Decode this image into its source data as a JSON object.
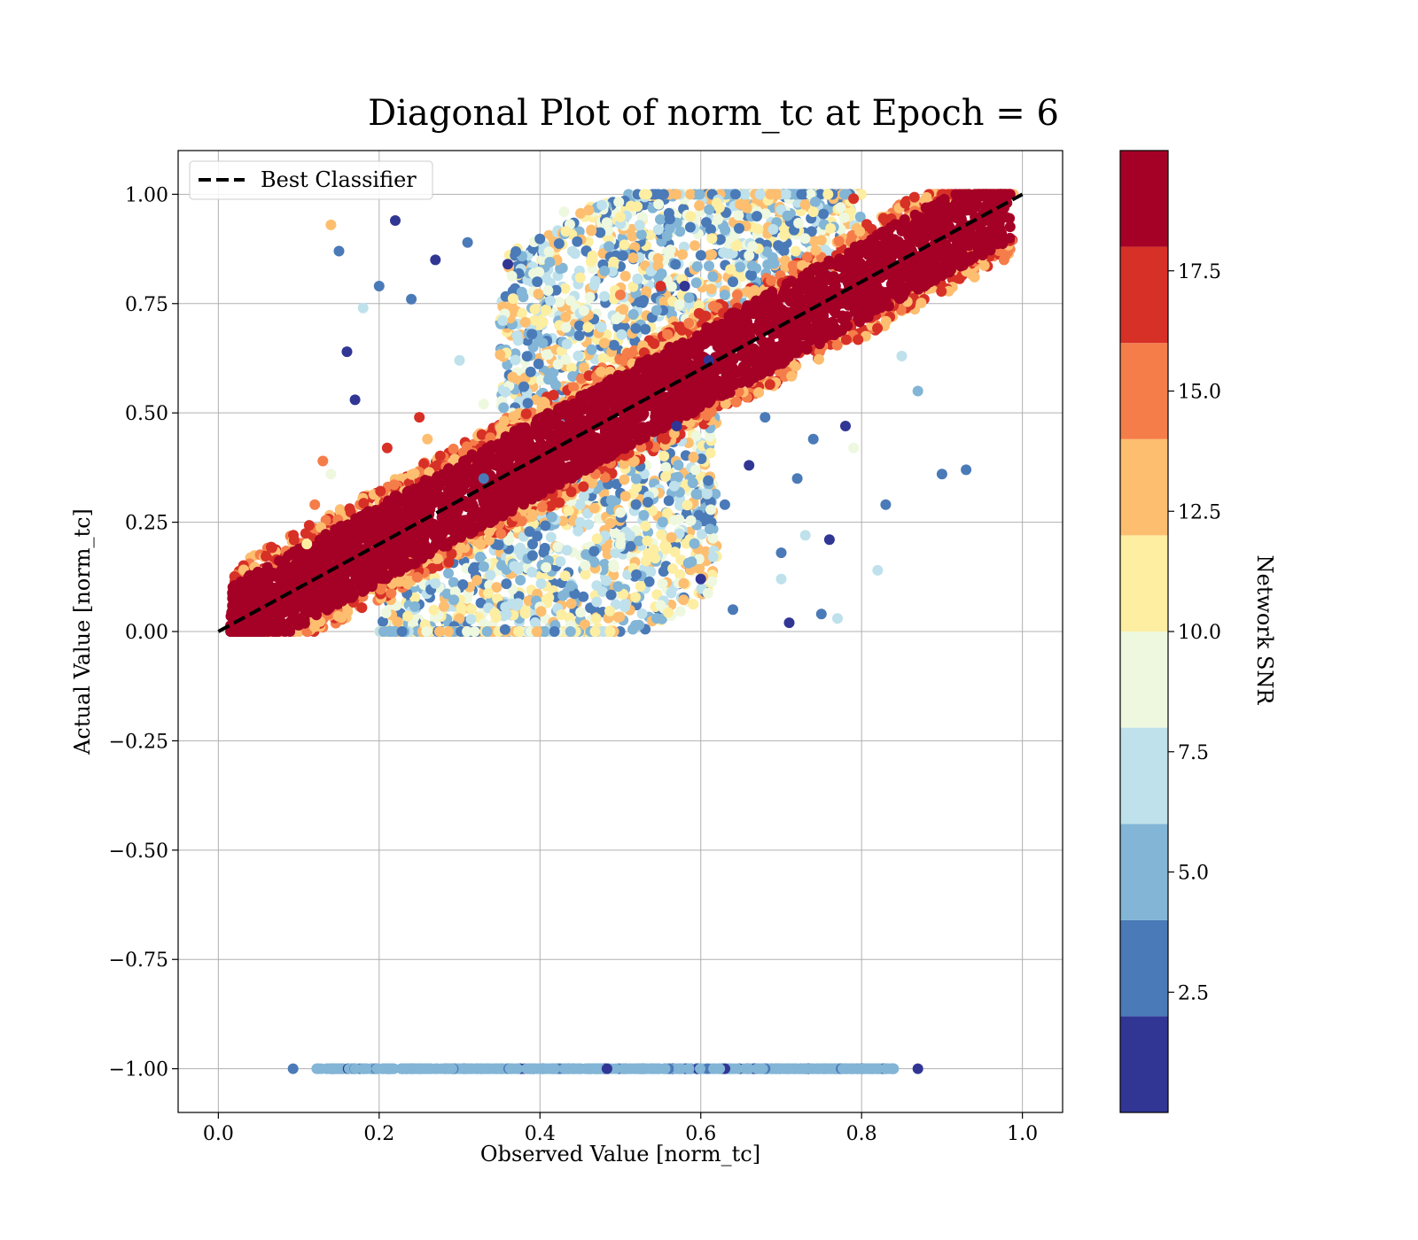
{
  "chart_data": {
    "type": "scatter",
    "title": "Diagonal Plot of norm_tc at Epoch = 6",
    "xlabel": "Observed Value [norm_tc]",
    "ylabel": "Actual Value [norm_tc]",
    "xlim": [
      -0.05,
      1.05
    ],
    "ylim": [
      -1.1,
      1.1
    ],
    "x_ticks": [
      "0.0",
      "0.2",
      "0.4",
      "0.6",
      "0.8",
      "1.0"
    ],
    "x_tick_values": [
      0.0,
      0.2,
      0.4,
      0.6,
      0.8,
      1.0
    ],
    "y_ticks": [
      "1.00",
      "0.75",
      "0.50",
      "0.25",
      "0.00",
      "−0.25",
      "−0.50",
      "−0.75",
      "−1.00"
    ],
    "y_tick_values": [
      1.0,
      0.75,
      0.5,
      0.25,
      0.0,
      -0.25,
      -0.5,
      -0.75,
      -1.0
    ],
    "grid": true,
    "legend": {
      "position": "upper-left",
      "entries": [
        {
          "label": "Best Classifier",
          "style": "dashed",
          "color": "#000000"
        }
      ]
    },
    "reference_line": {
      "name": "Best Classifier",
      "x": [
        0.0,
        1.0
      ],
      "y": [
        0.0,
        1.0
      ]
    },
    "colorbar": {
      "label": "Network SNR",
      "range": [
        0,
        20
      ],
      "ticks": [
        "2.5",
        "5.0",
        "7.5",
        "10.0",
        "12.5",
        "15.0",
        "17.5"
      ],
      "tick_values": [
        2.5,
        5.0,
        7.5,
        10.0,
        12.5,
        15.0,
        17.5
      ],
      "bins": [
        {
          "from": 0,
          "to": 2,
          "color": "#313695"
        },
        {
          "from": 2,
          "to": 4,
          "color": "#4a7ab7"
        },
        {
          "from": 4,
          "to": 6,
          "color": "#82b5d6"
        },
        {
          "from": 6,
          "to": 8,
          "color": "#bee1ec"
        },
        {
          "from": 8,
          "to": 10,
          "color": "#eef8df"
        },
        {
          "from": 10,
          "to": 12,
          "color": "#fdeea2"
        },
        {
          "from": 12,
          "to": 14,
          "color": "#fdbe70"
        },
        {
          "from": 14,
          "to": 16,
          "color": "#f57d4a"
        },
        {
          "from": 16,
          "to": 18,
          "color": "#d73027"
        },
        {
          "from": 18,
          "to": 20,
          "color": "#a50026"
        }
      ]
    },
    "series": [
      {
        "type": "dense_band",
        "x": [
          0.0,
          1.0
        ],
        "y_offset_range": [
          -0.09,
          0.09
        ],
        "snr": [
          16,
          20
        ]
      },
      {
        "type": "spread_upper",
        "x": [
          0.35,
          0.8
        ],
        "y": [
          0.0,
          1.0
        ],
        "snr": [
          2,
          14
        ]
      },
      {
        "type": "spread_lower",
        "x": [
          0.2,
          0.62
        ],
        "y": [
          0.0,
          0.5
        ],
        "snr": [
          2,
          14
        ]
      },
      {
        "type": "failed",
        "x": [
          0.09,
          0.87
        ],
        "y": [
          -1.0,
          -1.0
        ],
        "snr": [
          0,
          8
        ]
      }
    ],
    "points": [
      [
        0.17,
        0.53,
        0.5
      ],
      [
        0.16,
        0.64,
        0.5
      ],
      [
        0.2,
        0.79,
        2.2
      ],
      [
        0.22,
        0.94,
        0.5
      ],
      [
        0.14,
        0.93,
        13
      ],
      [
        0.15,
        0.87,
        3
      ],
      [
        0.18,
        0.74,
        7
      ],
      [
        0.24,
        0.76,
        3
      ],
      [
        0.27,
        0.85,
        1
      ],
      [
        0.93,
        0.37,
        3
      ],
      [
        0.83,
        0.29,
        3
      ],
      [
        0.73,
        0.22,
        7
      ],
      [
        0.71,
        0.02,
        1
      ],
      [
        0.75,
        0.04,
        3
      ],
      [
        0.77,
        0.03,
        7
      ],
      [
        0.7,
        0.18,
        3
      ],
      [
        0.78,
        0.47,
        1
      ],
      [
        0.72,
        0.35,
        2
      ],
      [
        0.66,
        0.38,
        1
      ],
      [
        0.63,
        0.29,
        2
      ],
      [
        0.6,
        0.12,
        1
      ],
      [
        0.61,
        0.62,
        1
      ],
      [
        0.5,
        0.77,
        15
      ],
      [
        0.55,
        0.79,
        16
      ],
      [
        0.58,
        0.79,
        0.5
      ],
      [
        0.64,
        0.8,
        3
      ],
      [
        0.13,
        0.39,
        15
      ],
      [
        0.14,
        0.36,
        8
      ],
      [
        0.21,
        0.42,
        16
      ],
      [
        0.25,
        0.49,
        17
      ],
      [
        0.26,
        0.44,
        12
      ],
      [
        0.12,
        0.29,
        14
      ],
      [
        0.11,
        0.2,
        11
      ],
      [
        0.85,
        0.63,
        7
      ],
      [
        0.9,
        0.36,
        3
      ],
      [
        0.82,
        0.14,
        7
      ],
      [
        0.41,
        0.78,
        9
      ],
      [
        0.48,
        0.66,
        12
      ],
      [
        0.68,
        0.49,
        3
      ],
      [
        0.74,
        0.44,
        3
      ],
      [
        0.79,
        0.42,
        9
      ],
      [
        0.87,
        0.55,
        4
      ],
      [
        0.3,
        0.62,
        6
      ],
      [
        0.33,
        0.35,
        2
      ],
      [
        0.27,
        0.11,
        7
      ],
      [
        0.45,
        0.25,
        6
      ],
      [
        0.52,
        0.13,
        3
      ],
      [
        0.57,
        0.47,
        1
      ],
      [
        0.38,
        0.56,
        2
      ],
      [
        0.36,
        0.84,
        1
      ],
      [
        0.31,
        0.89,
        2
      ],
      [
        0.43,
        0.96,
        8
      ],
      [
        0.62,
        0.98,
        10
      ],
      [
        0.69,
        0.92,
        6
      ],
      [
        0.74,
        0.96,
        11
      ],
      [
        0.79,
        0.99,
        16
      ],
      [
        0.66,
        0.86,
        8
      ],
      [
        0.33,
        0.52,
        9
      ],
      [
        0.39,
        0.68,
        3
      ],
      [
        0.59,
        0.34,
        4
      ],
      [
        0.55,
        0.06,
        9
      ],
      [
        0.5,
        0.2,
        8
      ],
      [
        0.47,
        0.03,
        11
      ],
      [
        0.64,
        0.05,
        2
      ],
      [
        0.7,
        0.12,
        6
      ],
      [
        0.76,
        0.21,
        1
      ]
    ]
  }
}
